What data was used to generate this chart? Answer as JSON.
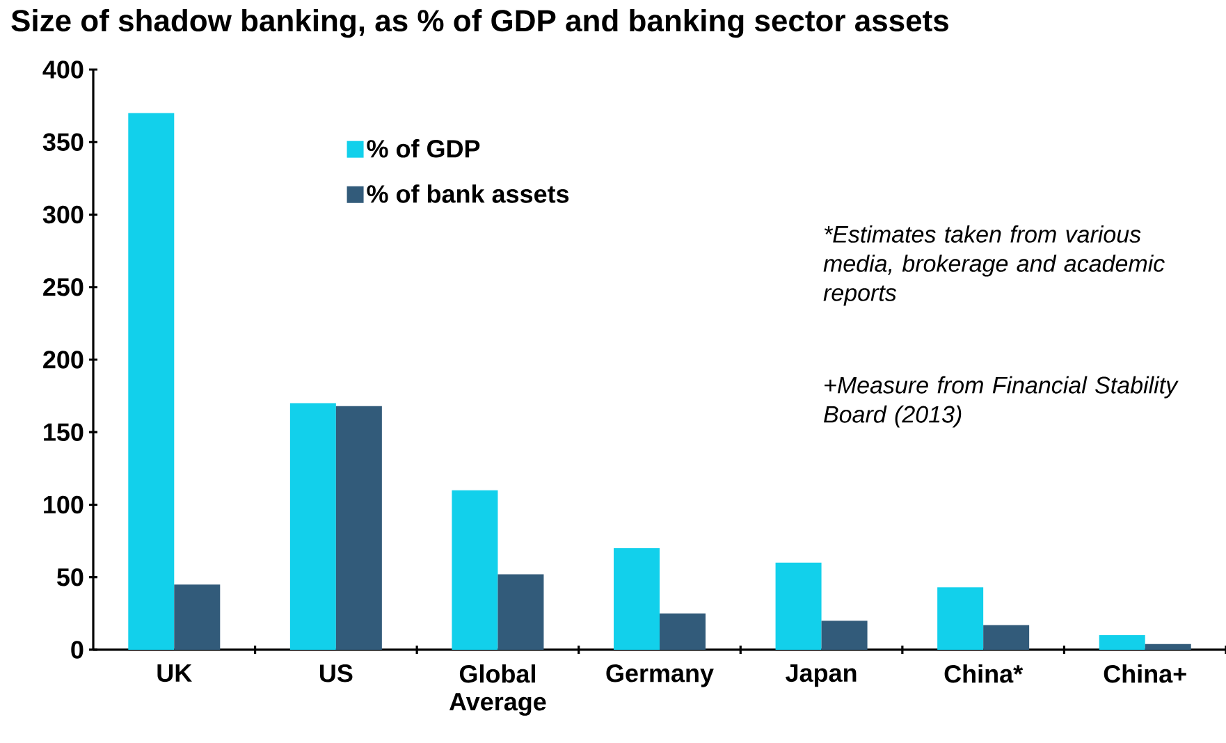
{
  "chart_data": {
    "type": "bar",
    "title": "Size of shadow banking, as % of GDP and banking sector assets",
    "categories": [
      "UK",
      "US",
      "Global Average",
      "Germany",
      "Japan",
      "China*",
      "China+"
    ],
    "series": [
      {
        "name": "% of GDP",
        "color": "#12d0eb",
        "values": [
          370,
          170,
          110,
          70,
          60,
          43,
          10
        ]
      },
      {
        "name": "% of bank assets",
        "color": "#325b7a",
        "values": [
          45,
          168,
          52,
          25,
          20,
          17,
          4
        ]
      }
    ],
    "ylim": [
      0,
      400
    ],
    "yticks": [
      0,
      50,
      100,
      150,
      200,
      250,
      300,
      350,
      400
    ],
    "legend": "top left",
    "annotations": [
      "*Estimates  taken from various media, brokerage and academic reports",
      "+Measure from Financial Stability Board (2013)"
    ]
  }
}
